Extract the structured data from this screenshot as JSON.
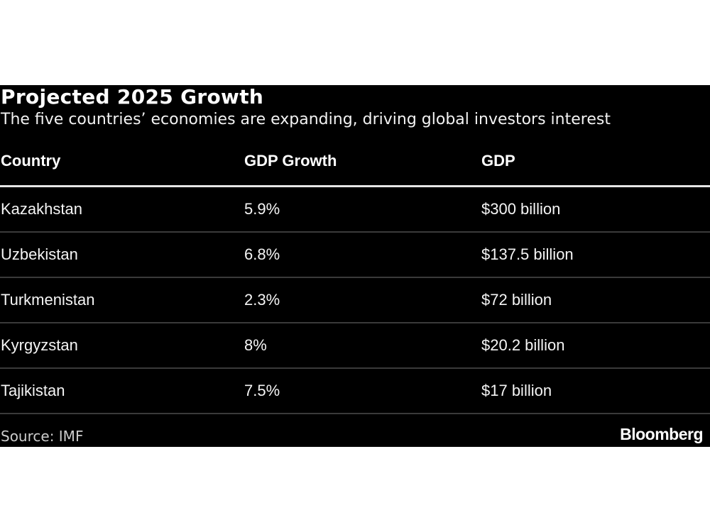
{
  "chart_data": {
    "type": "table",
    "title": "Projected 2025 Growth",
    "subtitle": "The five countries’ economies are expanding, driving global investors interest",
    "columns": [
      "Country",
      "GDP Growth",
      "GDP"
    ],
    "rows": [
      [
        "Kazakhstan",
        "5.9%",
        "$300 billion"
      ],
      [
        "Uzbekistan",
        "6.8%",
        "$137.5 billion"
      ],
      [
        "Turkmenistan",
        "2.3%",
        "$72 billion"
      ],
      [
        "Kyrgyzstan",
        "8%",
        "$20.2 billion"
      ],
      [
        "Tajikistan",
        "7.5%",
        "$17 billion"
      ]
    ],
    "source": "Source: IMF",
    "logo": "Bloomberg",
    "colors": {
      "background": "#000000",
      "text": "#ffffff",
      "divider": "#3a3a3a"
    }
  }
}
